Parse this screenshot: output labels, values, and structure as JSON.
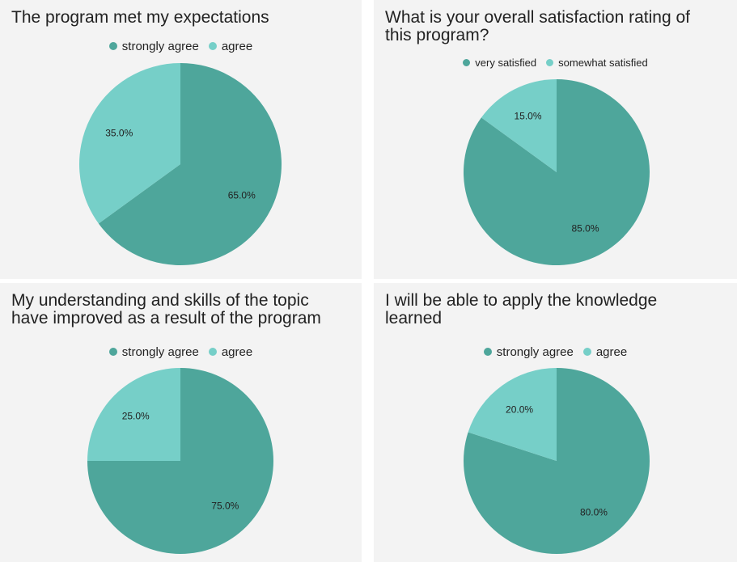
{
  "colors": {
    "primary": "#4ea69b",
    "secondary": "#76cfc8",
    "background": "#f3f3f3"
  },
  "chart_data": [
    {
      "type": "pie",
      "title": "The program met my expectations",
      "slices": [
        {
          "label": "strongly agree",
          "value": 65.0,
          "display": "65.0%"
        },
        {
          "label": "agree",
          "value": 35.0,
          "display": "35.0%"
        }
      ],
      "legend": "top"
    },
    {
      "type": "pie",
      "title": "What is your overall satisfaction rating of\nthis program?",
      "slices": [
        {
          "label": "very satisfied",
          "value": 85.0,
          "display": "85.0%"
        },
        {
          "label": "somewhat satisfied",
          "value": 15.0,
          "display": "15.0%"
        }
      ],
      "legend": "top"
    },
    {
      "type": "pie",
      "title": "My understanding and skills of the topic\nhave improved as a result of the program",
      "slices": [
        {
          "label": "strongly agree",
          "value": 75.0,
          "display": "75.0%"
        },
        {
          "label": "agree",
          "value": 25.0,
          "display": "25.0%"
        }
      ],
      "legend": "top"
    },
    {
      "type": "pie",
      "title": "I will be able to apply the knowledge\nlearned",
      "slices": [
        {
          "label": "strongly agree",
          "value": 80.0,
          "display": "80.0%"
        },
        {
          "label": "agree",
          "value": 20.0,
          "display": "20.0%"
        }
      ],
      "legend": "top"
    }
  ]
}
